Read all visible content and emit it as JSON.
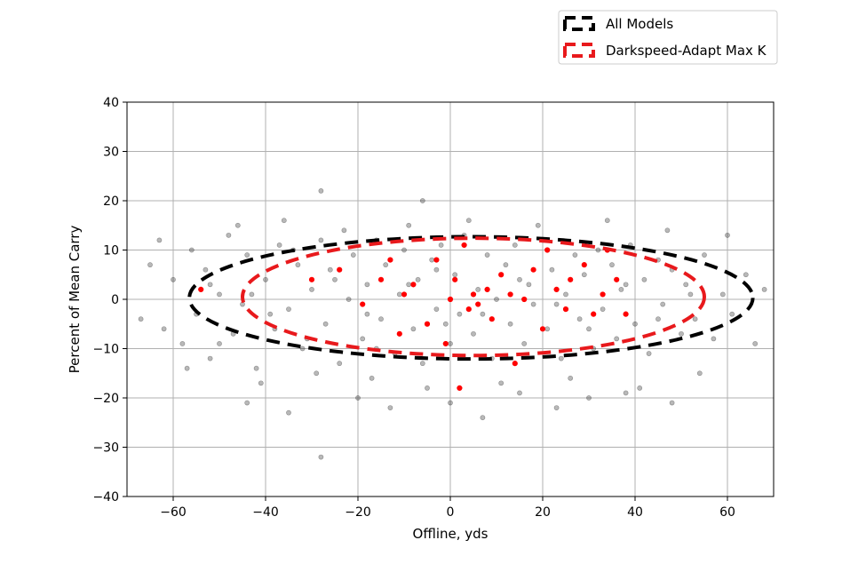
{
  "chart_data": {
    "type": "scatter",
    "title": "",
    "xlabel": "Offline, yds",
    "ylabel": "Percent of Mean Carry",
    "xlim": [
      -70,
      70
    ],
    "ylim": [
      -40,
      40
    ],
    "xticks": [
      -60,
      -40,
      -20,
      0,
      20,
      40,
      60
    ],
    "yticks": [
      -40,
      -30,
      -20,
      -10,
      0,
      10,
      20,
      30,
      40
    ],
    "xtick_labels": [
      "−60",
      "−40",
      "−20",
      "0",
      "20",
      "40",
      "60"
    ],
    "ytick_labels": [
      "−40",
      "−30",
      "−20",
      "−10",
      "0",
      "10",
      "20",
      "30",
      "40"
    ],
    "grid": true,
    "legend_position": "above-right",
    "series": [
      {
        "name": "All Models",
        "kind": "points",
        "color": "#000000",
        "opacity": 0.28,
        "points": [
          [
            -65,
            7
          ],
          [
            -62,
            -6
          ],
          [
            -60,
            4
          ],
          [
            -58,
            -9
          ],
          [
            -56,
            10
          ],
          [
            -55,
            -3
          ],
          [
            -53,
            6
          ],
          [
            -52,
            -12
          ],
          [
            -50,
            1
          ],
          [
            -48,
            13
          ],
          [
            -47,
            -7
          ],
          [
            -45,
            -1
          ],
          [
            -44,
            9
          ],
          [
            -42,
            -14
          ],
          [
            -40,
            4
          ],
          [
            -38,
            -6
          ],
          [
            -37,
            11
          ],
          [
            -35,
            -2
          ],
          [
            -33,
            7
          ],
          [
            -32,
            -10
          ],
          [
            -30,
            2
          ],
          [
            -28,
            12
          ],
          [
            -27,
            -5
          ],
          [
            -26,
            6
          ],
          [
            -24,
            -13
          ],
          [
            -22,
            0
          ],
          [
            -21,
            9
          ],
          [
            -19,
            -8
          ],
          [
            -18,
            3
          ],
          [
            -16,
            12
          ],
          [
            -15,
            -4
          ],
          [
            -14,
            7
          ],
          [
            -12,
            -11
          ],
          [
            -11,
            1
          ],
          [
            -10,
            10
          ],
          [
            -8,
            -6
          ],
          [
            -7,
            4
          ],
          [
            -6,
            -13
          ],
          [
            -4,
            8
          ],
          [
            -3,
            -2
          ],
          [
            -2,
            11
          ],
          [
            0,
            -9
          ],
          [
            1,
            5
          ],
          [
            2,
            -3
          ],
          [
            3,
            13
          ],
          [
            5,
            -7
          ],
          [
            6,
            2
          ],
          [
            8,
            9
          ],
          [
            9,
            -12
          ],
          [
            10,
            0
          ],
          [
            12,
            7
          ],
          [
            13,
            -5
          ],
          [
            14,
            11
          ],
          [
            16,
            -9
          ],
          [
            17,
            3
          ],
          [
            18,
            -1
          ],
          [
            20,
            12
          ],
          [
            21,
            -6
          ],
          [
            22,
            6
          ],
          [
            24,
            -12
          ],
          [
            25,
            1
          ],
          [
            27,
            9
          ],
          [
            28,
            -4
          ],
          [
            29,
            5
          ],
          [
            31,
            -10
          ],
          [
            32,
            10
          ],
          [
            33,
            -2
          ],
          [
            35,
            7
          ],
          [
            36,
            -8
          ],
          [
            37,
            2
          ],
          [
            39,
            11
          ],
          [
            40,
            -5
          ],
          [
            42,
            4
          ],
          [
            43,
            -11
          ],
          [
            45,
            8
          ],
          [
            46,
            -1
          ],
          [
            48,
            6
          ],
          [
            50,
            -7
          ],
          [
            51,
            3
          ],
          [
            53,
            -4
          ],
          [
            55,
            9
          ],
          [
            57,
            -8
          ],
          [
            59,
            1
          ],
          [
            61,
            -3
          ],
          [
            64,
            5
          ],
          [
            66,
            -9
          ],
          [
            68,
            2
          ],
          [
            -67,
            -4
          ],
          [
            -63,
            12
          ],
          [
            -57,
            -14
          ],
          [
            -46,
            15
          ],
          [
            -41,
            -17
          ],
          [
            -36,
            16
          ],
          [
            -29,
            -15
          ],
          [
            -23,
            14
          ],
          [
            -17,
            -16
          ],
          [
            -9,
            15
          ],
          [
            -5,
            -18
          ],
          [
            4,
            16
          ],
          [
            11,
            -17
          ],
          [
            19,
            15
          ],
          [
            26,
            -16
          ],
          [
            34,
            16
          ],
          [
            41,
            -18
          ],
          [
            47,
            14
          ],
          [
            54,
            -15
          ],
          [
            60,
            13
          ],
          [
            -44,
            -21
          ],
          [
            -35,
            -23
          ],
          [
            -28,
            22
          ],
          [
            -20,
            -20
          ],
          [
            -13,
            -22
          ],
          [
            -6,
            20
          ],
          [
            0,
            -21
          ],
          [
            7,
            -24
          ],
          [
            15,
            -19
          ],
          [
            23,
            -22
          ],
          [
            30,
            -20
          ],
          [
            38,
            -19
          ],
          [
            48,
            -21
          ],
          [
            -28,
            -32
          ],
          [
            -50,
            -9
          ],
          [
            -52,
            3
          ],
          [
            -39,
            -3
          ],
          [
            -31,
            -8
          ],
          [
            -25,
            4
          ],
          [
            -18,
            -3
          ],
          [
            -9,
            3
          ],
          [
            -1,
            -5
          ],
          [
            7,
            -3
          ],
          [
            15,
            4
          ],
          [
            23,
            -1
          ],
          [
            30,
            -6
          ],
          [
            38,
            3
          ],
          [
            45,
            -4
          ],
          [
            52,
            1
          ],
          [
            -43,
            1
          ],
          [
            -34,
            10
          ],
          [
            -16,
            -10
          ],
          [
            -3,
            6
          ]
        ]
      },
      {
        "name": "Darkspeed-Adapt Max K",
        "kind": "points",
        "color": "#ff0000",
        "opacity": 1,
        "points": [
          [
            -54,
            2
          ],
          [
            -30,
            4
          ],
          [
            -19,
            -1
          ],
          [
            -15,
            4
          ],
          [
            -13,
            8
          ],
          [
            -10,
            1
          ],
          [
            -8,
            3
          ],
          [
            -5,
            -5
          ],
          [
            -3,
            8
          ],
          [
            -1,
            -9
          ],
          [
            0,
            0
          ],
          [
            1,
            4
          ],
          [
            3,
            11
          ],
          [
            4,
            -2
          ],
          [
            5,
            1
          ],
          [
            6,
            -1
          ],
          [
            8,
            2
          ],
          [
            9,
            -4
          ],
          [
            11,
            5
          ],
          [
            13,
            1
          ],
          [
            14,
            -13
          ],
          [
            16,
            0
          ],
          [
            18,
            6
          ],
          [
            20,
            -6
          ],
          [
            21,
            10
          ],
          [
            23,
            2
          ],
          [
            25,
            -2
          ],
          [
            26,
            4
          ],
          [
            29,
            7
          ],
          [
            31,
            -3
          ],
          [
            33,
            1
          ],
          [
            34,
            10
          ],
          [
            36,
            4
          ],
          [
            38,
            -3
          ],
          [
            -24,
            6
          ],
          [
            -11,
            -7
          ],
          [
            2,
            -18
          ]
        ]
      },
      {
        "name": "All Models",
        "kind": "ellipse",
        "color": "#000000",
        "center": [
          4.5,
          0.3
        ],
        "rx": 61,
        "ry": 12.4,
        "dash": "dashed"
      },
      {
        "name": "Darkspeed-Adapt Max K",
        "kind": "ellipse",
        "color": "#e8191c",
        "center": [
          5,
          0.5
        ],
        "rx": 50,
        "ry": 11.9,
        "dash": "dashed"
      }
    ],
    "legend": {
      "entries": [
        {
          "label": "All Models",
          "color": "#000000"
        },
        {
          "label": "Darkspeed-Adapt Max K",
          "color": "#e8191c"
        }
      ]
    }
  }
}
